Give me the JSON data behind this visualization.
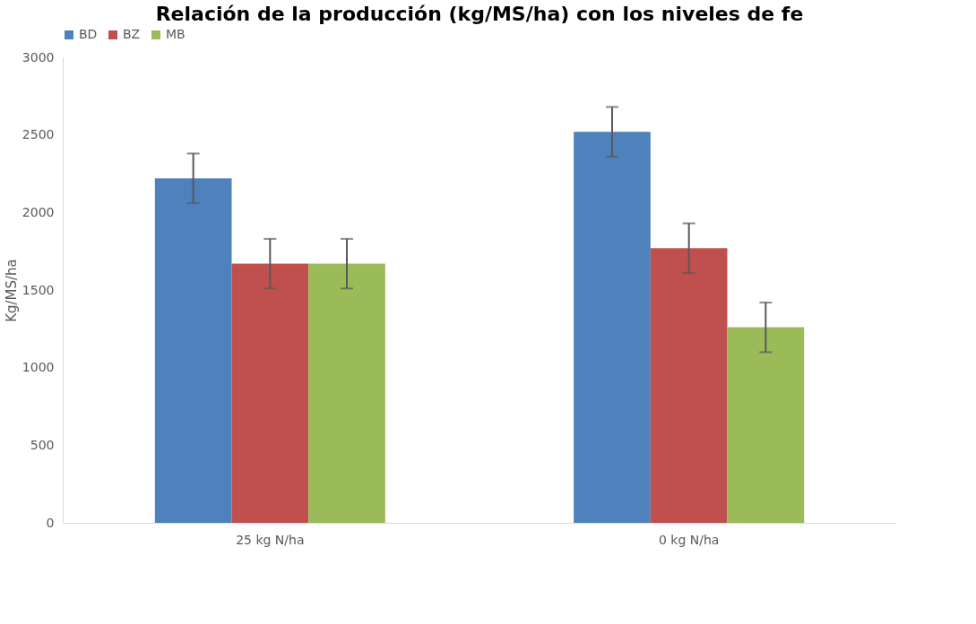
{
  "chart_data": {
    "type": "bar",
    "title": "Relación de la producción (kg/MS/ha) con los niveles de fe",
    "ylabel": "Kg/MS/ha",
    "categories": [
      "25 kg N/ha",
      "0 kg N/ha"
    ],
    "series": [
      {
        "name": "BD",
        "color": "#4f81bd",
        "values": [
          2220,
          2520
        ],
        "errors": [
          160,
          160
        ]
      },
      {
        "name": "BZ",
        "color": "#c0504d",
        "values": [
          1670,
          1770
        ],
        "errors": [
          160,
          160
        ]
      },
      {
        "name": "MB",
        "color": "#9bbb59",
        "values": [
          1670,
          1260
        ],
        "errors": [
          160,
          160
        ]
      }
    ],
    "ylim": [
      0,
      3000
    ],
    "yticks": [
      0,
      500,
      1000,
      1500,
      2000,
      2500,
      3000
    ],
    "grid": false,
    "legend": "top"
  }
}
